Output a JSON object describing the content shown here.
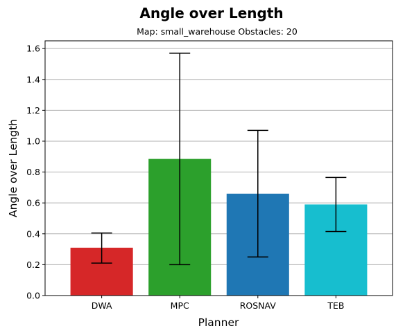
{
  "chart_data": {
    "type": "bar",
    "title": "Angle over Length",
    "subtitle": "Map: small_warehouse Obstacles: 20",
    "xlabel": "Planner",
    "ylabel": "Angle over Length",
    "categories": [
      "DWA",
      "MPC",
      "ROSNAV",
      "TEB"
    ],
    "values": [
      0.31,
      0.885,
      0.66,
      0.59
    ],
    "error_low": [
      0.21,
      0.2,
      0.25,
      0.415
    ],
    "error_high": [
      0.405,
      1.57,
      1.07,
      0.765
    ],
    "colors": [
      "#d62728",
      "#2ca02c",
      "#1f77b4",
      "#17becf"
    ],
    "ylim": [
      0,
      1.65
    ],
    "yticks": [
      "0.0",
      "0.2",
      "0.4",
      "0.6",
      "0.8",
      "1.0",
      "1.2",
      "1.4",
      "1.6"
    ],
    "grid": "horizontal",
    "legend": "none"
  }
}
